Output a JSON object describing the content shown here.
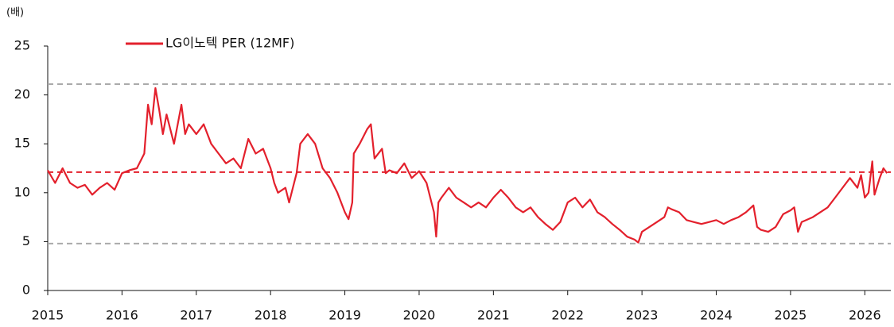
{
  "chart_data": {
    "type": "line",
    "y_label": "(배)",
    "x": [
      2015.0,
      2015.1,
      2015.2,
      2015.3,
      2015.4,
      2015.5,
      2015.6,
      2015.7,
      2015.8,
      2015.9,
      2016.0,
      2016.1,
      2016.2,
      2016.3,
      2016.35,
      2016.4,
      2016.45,
      2016.5,
      2016.55,
      2016.6,
      2016.7,
      2016.8,
      2016.85,
      2016.9,
      2017.0,
      2017.1,
      2017.2,
      2017.3,
      2017.4,
      2017.5,
      2017.6,
      2017.7,
      2017.8,
      2017.9,
      2018.0,
      2018.05,
      2018.1,
      2018.2,
      2018.25,
      2018.3,
      2018.35,
      2018.4,
      2018.5,
      2018.6,
      2018.7,
      2018.8,
      2018.9,
      2019.0,
      2019.05,
      2019.1,
      2019.12,
      2019.2,
      2019.3,
      2019.35,
      2019.4,
      2019.5,
      2019.55,
      2019.6,
      2019.7,
      2019.8,
      2019.9,
      2020.0,
      2020.1,
      2020.2,
      2020.23,
      2020.26,
      2020.3,
      2020.4,
      2020.5,
      2020.6,
      2020.7,
      2020.8,
      2020.9,
      2021.0,
      2021.1,
      2021.2,
      2021.3,
      2021.4,
      2021.5,
      2021.6,
      2021.7,
      2021.8,
      2021.9,
      2022.0,
      2022.1,
      2022.2,
      2022.3,
      2022.4,
      2022.5,
      2022.6,
      2022.7,
      2022.8,
      2022.9,
      2022.95,
      2023.0,
      2023.1,
      2023.2,
      2023.3,
      2023.35,
      2023.4,
      2023.5,
      2023.6,
      2023.7,
      2023.8,
      2023.9,
      2024.0,
      2024.1,
      2024.2,
      2024.3,
      2024.4,
      2024.5,
      2024.55,
      2024.6,
      2024.7,
      2024.8,
      2024.9,
      2025.0,
      2025.05,
      2025.1,
      2025.15,
      2025.3,
      2025.4,
      2025.5,
      2025.6,
      2025.7,
      2025.8,
      2025.9,
      2025.95,
      2026.0,
      2026.05,
      2026.1,
      2026.13,
      2026.2,
      2026.25,
      2026.3
    ],
    "series": [
      {
        "name": "LG이노텍 PER (12MF)",
        "color": "#e3202c",
        "values": [
          12.3,
          11,
          12.5,
          11,
          10.5,
          10.8,
          9.8,
          10.5,
          11,
          10.3,
          12,
          12.3,
          12.5,
          14,
          19,
          17,
          20.7,
          18.5,
          16,
          18,
          15,
          19,
          16,
          17,
          16,
          17,
          15,
          14,
          13,
          13.5,
          12.5,
          15.5,
          14,
          14.5,
          12.5,
          11,
          10,
          10.5,
          9,
          10.5,
          12,
          15,
          16,
          15,
          12.5,
          11.5,
          10,
          8,
          7.3,
          9,
          14,
          15,
          16.5,
          17,
          13.5,
          14.5,
          12,
          12.3,
          12,
          13,
          11.5,
          12.2,
          11,
          8,
          5.5,
          9,
          9.5,
          10.5,
          9.5,
          9,
          8.5,
          9,
          8.5,
          9.5,
          10.3,
          9.5,
          8.5,
          8,
          8.5,
          7.5,
          6.8,
          6.2,
          7,
          9,
          9.5,
          8.5,
          9.3,
          8,
          7.5,
          6.8,
          6.2,
          5.5,
          5.2,
          4.9,
          6,
          6.5,
          7,
          7.5,
          8.5,
          8.3,
          8,
          7.2,
          7,
          6.8,
          7,
          7.2,
          6.8,
          7.2,
          7.5,
          8,
          8.7,
          6.5,
          6.2,
          6,
          6.5,
          7.8,
          8.2,
          8.5,
          6,
          7,
          7.5,
          8,
          8.5,
          9.5,
          10.5,
          11.5,
          10.5,
          11.8,
          9.5,
          10,
          13.2,
          9.8,
          11.5,
          12.5,
          12
        ]
      }
    ],
    "hlines": [
      {
        "value": 21.1,
        "color": "#aaaaaa"
      },
      {
        "value": 12.1,
        "color": "#e3202c"
      },
      {
        "value": 4.8,
        "color": "#aaaaaa"
      }
    ],
    "xlim": [
      2015,
      2026.35
    ],
    "xticks": [
      2015,
      2016,
      2017,
      2018,
      2019,
      2020,
      2021,
      2022,
      2023,
      2024,
      2025,
      2026
    ],
    "ylim": [
      0,
      25
    ],
    "yticks": [
      0,
      5,
      10,
      15,
      20,
      25
    ],
    "grid": false
  }
}
